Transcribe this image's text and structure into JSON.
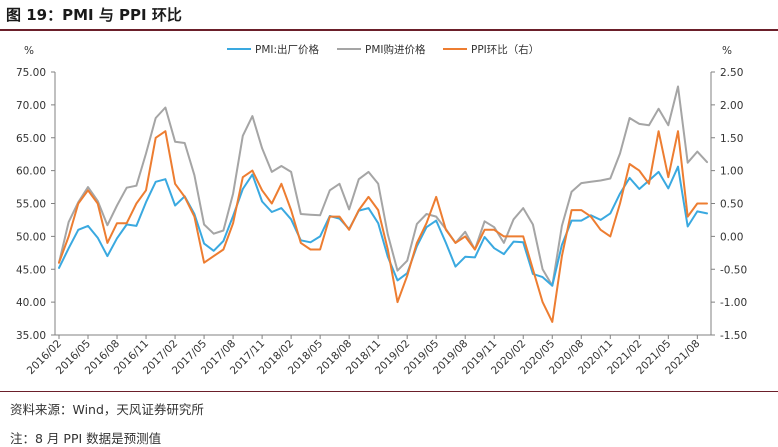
{
  "header": {
    "title": "图 19：PMI 与 PPI 环比"
  },
  "footer": {
    "source": "资料来源：Wind，天风证券研究所",
    "note": "注：8 月 PPI 数据是预测值"
  },
  "colors": {
    "pmi_output": "#3aa9e0",
    "pmi_input": "#a5a5a5",
    "ppi_mom": "#ed7d31",
    "axis": "#808080",
    "text": "#333333",
    "rule": "#6b1f2a"
  },
  "chart_data": {
    "type": "line",
    "title": "PMI 与 PPI 环比",
    "y_left_unit": "%",
    "y_right_unit": "%",
    "y_left_lim": [
      35,
      75
    ],
    "y_right_lim": [
      -1.5,
      2.5
    ],
    "y_left_ticks": [
      "35.00",
      "40.00",
      "45.00",
      "50.00",
      "55.00",
      "60.00",
      "65.00",
      "70.00",
      "75.00"
    ],
    "y_right_ticks": [
      "-1.50",
      "-1.00",
      "-0.50",
      "0.00",
      "0.50",
      "1.00",
      "1.50",
      "2.00",
      "2.50"
    ],
    "x_tick_labels": [
      "2016/02",
      "2016/05",
      "2016/08",
      "2016/11",
      "2017/02",
      "2017/05",
      "2017/08",
      "2017/11",
      "2018/02",
      "2018/05",
      "2018/08",
      "2018/11",
      "2019/02",
      "2019/05",
      "2019/08",
      "2019/11",
      "2020/02",
      "2020/05",
      "2020/08",
      "2020/11",
      "2021/02",
      "2021/05",
      "2021/08"
    ],
    "grid": false,
    "legend_position": "top",
    "series": [
      {
        "name": "PMI:出厂价格",
        "axis": "left",
        "color_key": "pmi_output",
        "values": [
          45.2,
          48.2,
          51.0,
          51.6,
          49.8,
          47.0,
          49.7,
          51.8,
          51.6,
          55.2,
          58.3,
          58.7,
          54.7,
          56.1,
          53.4,
          48.9,
          47.8,
          49.3,
          53.1,
          57.2,
          59.4,
          55.3,
          53.7,
          54.3,
          52.6,
          49.4,
          49.1,
          50.0,
          53.1,
          52.7,
          51.1,
          53.9,
          54.3,
          52.0,
          46.9,
          43.3,
          44.4,
          48.5,
          51.4,
          52.4,
          49.0,
          45.4,
          46.9,
          46.8,
          49.9,
          48.2,
          47.3,
          49.2,
          49.1,
          44.3,
          43.8,
          42.5,
          48.7,
          52.4,
          52.4,
          53.2,
          52.5,
          53.5,
          56.5,
          58.9,
          57.2,
          58.5,
          59.8,
          57.3,
          60.6,
          51.5,
          53.8,
          53.5
        ]
      },
      {
        "name": "PMI购进价格",
        "axis": "left",
        "color_key": "pmi_input",
        "values": [
          46.0,
          52.2,
          55.2,
          57.5,
          55.4,
          51.7,
          54.7,
          57.4,
          57.7,
          62.6,
          68.0,
          69.6,
          64.4,
          64.2,
          59.3,
          51.8,
          50.4,
          50.9,
          56.5,
          65.3,
          68.3,
          63.4,
          59.8,
          60.7,
          59.8,
          53.4,
          53.3,
          53.2,
          57.0,
          58.0,
          54.1,
          58.7,
          59.8,
          58.0,
          50.3,
          44.8,
          46.3,
          51.9,
          53.4,
          53.0,
          51.1,
          49.0,
          50.7,
          48.0,
          52.3,
          51.4,
          49.0,
          52.6,
          54.3,
          51.8,
          45.0,
          42.5,
          51.6,
          56.8,
          58.1,
          58.3,
          58.5,
          58.8,
          62.6,
          68.0,
          67.1,
          66.9,
          69.4,
          66.9,
          72.8,
          61.2,
          62.9,
          61.3
        ]
      },
      {
        "name": "PPI环比（右）",
        "axis": "right",
        "color_key": "ppi_mom",
        "values": [
          -0.4,
          0.0,
          0.5,
          0.7,
          0.5,
          -0.1,
          0.2,
          0.2,
          0.5,
          0.7,
          1.5,
          1.6,
          0.8,
          0.6,
          0.3,
          -0.4,
          -0.3,
          -0.2,
          0.2,
          0.9,
          1.0,
          0.7,
          0.5,
          0.8,
          0.4,
          -0.1,
          -0.2,
          -0.2,
          0.3,
          0.3,
          0.1,
          0.4,
          0.6,
          0.4,
          -0.2,
          -1.0,
          -0.6,
          -0.1,
          0.2,
          0.6,
          0.1,
          -0.1,
          0.0,
          -0.2,
          0.1,
          0.1,
          0.0,
          0.0,
          0.0,
          -0.5,
          -1.0,
          -1.3,
          -0.3,
          0.4,
          0.4,
          0.3,
          0.1,
          0.0,
          0.5,
          1.1,
          1.0,
          0.8,
          1.6,
          0.9,
          1.6,
          0.3,
          0.5,
          0.5
        ]
      }
    ]
  }
}
